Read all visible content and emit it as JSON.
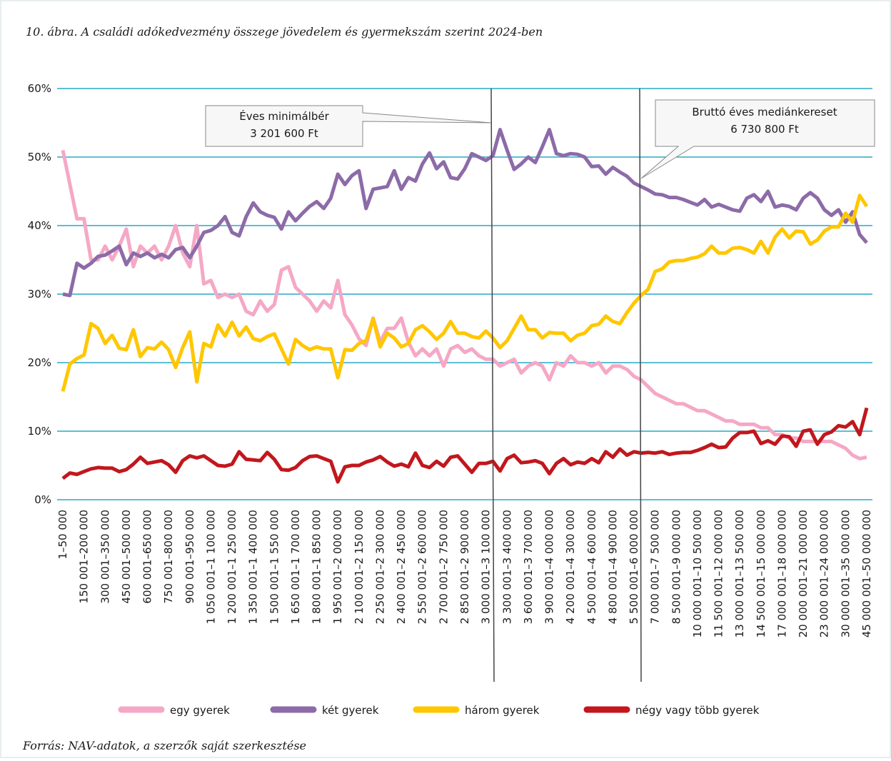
{
  "chart_data": {
    "type": "line",
    "title": "10. ábra. A családi adókedvezmény összege jövedelem és gyermekszám szerint 2024-ben",
    "source": "Forrás: NAV-adatok, a szerzők saját szerkesztése",
    "annotations": [
      [
        "Éves minimálbér",
        "3 201 600 Ft"
      ],
      [
        "Bruttó éves mediánkereset",
        "6 730 800 Ft"
      ]
    ],
    "categories": [
      "1–50 000",
      null,
      null,
      "150 001–200 000",
      null,
      null,
      "300 001–350 000",
      null,
      null,
      "450 001–500 000",
      null,
      null,
      "600 001–650 000",
      null,
      null,
      "750 001–800 000",
      null,
      null,
      "900 001–950 000",
      null,
      null,
      "1 050 001–1 100 000",
      null,
      null,
      "1 200 001–1 250 000",
      null,
      null,
      "1 350 001–1 400 000",
      null,
      null,
      "1 500 001–1 550 000",
      null,
      null,
      "1 650 001–1 700 000",
      null,
      null,
      "1 800 001–1 850 000",
      null,
      null,
      "1 950 001–2 000 000",
      null,
      null,
      "2 100 001–2 150 000",
      null,
      null,
      "2 250 001–2 300 000",
      null,
      null,
      "2 400 001–2 450 000",
      null,
      null,
      "2 550 001–2 600 000",
      null,
      null,
      "2 700 001–2 750 000",
      null,
      null,
      "2 850 001–2 900 000",
      null,
      null,
      "3 000 001–3 100 000",
      null,
      null,
      "3 300 001–3 400 000",
      null,
      null,
      "3 600 001–3 700 000",
      null,
      null,
      "3 900 001–4 000 000",
      null,
      null,
      "4 200 001–4 300 000",
      null,
      null,
      "4 500 001–4 600 000",
      null,
      null,
      "4 800 001–4 900 000",
      null,
      null,
      "5 500 001–6 000 000",
      null,
      null,
      "7 000 001–7 500 000",
      null,
      null,
      "8 500 001–9 000 000",
      null,
      null,
      "10 000 001–10 500 000",
      null,
      null,
      "11 500 001–12 000 000",
      null,
      null,
      "13 000 001–13 500 000",
      null,
      null,
      "14 500 001–15 000 000",
      null,
      null,
      "17 000 001–18 000 000",
      null,
      null,
      "20 000 001–21 000 000",
      null,
      null,
      "23 000 001–24 000 000",
      null,
      null,
      "30 000 001–35 000 000",
      null,
      null,
      "45 000 001–50 000 000"
    ],
    "series": [
      {
        "name": "egy gyerek",
        "color": "#f5a8c5",
        "values": [
          51,
          46,
          41,
          41,
          35,
          35,
          37,
          35,
          37,
          39.5,
          34,
          37,
          36,
          37,
          35,
          37,
          40,
          36,
          34,
          40,
          31.5,
          32,
          29.5,
          30,
          29.5,
          30,
          27.5,
          27,
          29,
          27.5,
          28.5,
          33.5,
          34,
          31,
          30,
          29,
          27.5,
          29,
          28,
          32,
          27,
          25.5,
          23.5,
          22.5,
          26.5,
          23,
          25,
          25,
          26.5,
          23,
          21,
          22,
          21,
          22,
          19.5,
          22,
          22.5,
          21.5,
          22,
          21,
          20.5,
          20.5,
          19.5,
          20,
          20.5,
          18.5,
          19.5,
          20,
          19.5,
          17.5,
          20,
          19.5,
          21,
          20,
          20,
          19.5,
          20,
          18.5,
          19.5,
          19.5,
          19,
          18,
          17.5,
          16.5,
          15.5,
          15,
          14.5,
          14,
          14,
          13.5,
          13,
          13,
          12.5,
          12,
          11.5,
          11.5,
          11,
          11,
          11,
          10.5,
          10.5,
          9.5,
          9.5,
          9,
          9,
          8.5,
          8.5,
          8.5,
          8.5,
          8.5,
          8,
          7.5,
          6.5,
          6,
          6.2
        ]
      },
      {
        "name": "két gyerek",
        "color": "#8c6ba8",
        "values": [
          30,
          29.8,
          34.5,
          33.8,
          34.5,
          35.5,
          35.7,
          36.3,
          37,
          34.3,
          36,
          35.5,
          36,
          35.3,
          35.8,
          35.3,
          36.5,
          36.8,
          35.3,
          37,
          39,
          39.3,
          40,
          41.3,
          39,
          38.5,
          41.3,
          43.3,
          42,
          41.5,
          41.2,
          39.5,
          42,
          40.7,
          41.8,
          42.8,
          43.5,
          42.5,
          44,
          47.5,
          46,
          47.3,
          48,
          42.5,
          45.3,
          45.5,
          45.7,
          48,
          45.3,
          47,
          46.5,
          49,
          50.6,
          48.3,
          49.3,
          47,
          46.8,
          48.3,
          50.5,
          50,
          49.5,
          50.2,
          54,
          51,
          48.2,
          49,
          50,
          49.2,
          51.5,
          54,
          50.5,
          50.2,
          50.5,
          50.4,
          50,
          48.6,
          48.7,
          47.5,
          48.5,
          47.8,
          47.2,
          46.2,
          45.7,
          45.2,
          44.6,
          44.5,
          44.1,
          44.1,
          43.8,
          43.4,
          43,
          43.8,
          42.7,
          43.1,
          42.7,
          42.3,
          42.1,
          44,
          44.5,
          43.5,
          45,
          42.7,
          43,
          42.8,
          42.3,
          44,
          44.8,
          44,
          42.3,
          41.5,
          42.3,
          40.5,
          42,
          38.7,
          37.5
        ]
      },
      {
        "name": "három gyerek",
        "color": "#ffc700",
        "values": [
          15.8,
          19.8,
          20.6,
          21.1,
          25.7,
          25,
          22.8,
          24,
          22.1,
          21.9,
          24.8,
          20.9,
          22.2,
          22,
          23,
          21.9,
          19.3,
          22.2,
          24.5,
          17.2,
          22.8,
          22.3,
          25.5,
          23.9,
          25.9,
          23.9,
          25.2,
          23.5,
          23.2,
          23.8,
          24.2,
          22,
          19.8,
          23.4,
          22.5,
          21.9,
          22.3,
          22,
          22,
          17.8,
          21.9,
          21.8,
          22.8,
          23.2,
          26.4,
          22.3,
          24.3,
          23.6,
          22.3,
          22.8,
          24.8,
          25.4,
          24.5,
          23.4,
          24.3,
          26,
          24.3,
          24.3,
          23.8,
          23.6,
          24.6,
          23.6,
          22.2,
          23.2,
          25,
          26.8,
          24.8,
          24.8,
          23.6,
          24.4,
          24.3,
          24.3,
          23.2,
          24,
          24.3,
          25.4,
          25.6,
          26.8,
          26,
          25.7,
          27.3,
          28.7,
          29.8,
          30.7,
          33.3,
          33.7,
          34.7,
          34.9,
          34.9,
          35.2,
          35.4,
          35.9,
          37,
          36,
          36,
          36.7,
          36.8,
          36.5,
          36,
          37.7,
          36,
          38.3,
          39.5,
          38.2,
          39.2,
          39.1,
          37.3,
          37.9,
          39.2,
          39.8,
          39.8,
          41.8,
          40.5,
          44.4,
          42.8
        ]
      },
      {
        "name": "négy vagy több gyerek",
        "color": "#c1171d",
        "values": [
          3.1,
          3.9,
          3.7,
          4.1,
          4.5,
          4.7,
          4.6,
          4.6,
          4.1,
          4.4,
          5.2,
          6.2,
          5.3,
          5.5,
          5.7,
          5.1,
          4,
          5.7,
          6.4,
          6.1,
          6.4,
          5.7,
          5,
          4.9,
          5.2,
          7,
          5.9,
          5.8,
          5.7,
          6.9,
          5.9,
          4.4,
          4.3,
          4.7,
          5.7,
          6.3,
          6.4,
          6,
          5.6,
          2.6,
          4.8,
          5,
          5,
          5.5,
          5.8,
          6.3,
          5.5,
          4.9,
          5.2,
          4.8,
          6.8,
          5,
          4.7,
          5.6,
          4.9,
          6.2,
          6.4,
          5.2,
          4,
          5.3,
          5.3,
          5.6,
          4.2,
          6,
          6.5,
          5.4,
          5.5,
          5.7,
          5.3,
          3.8,
          5.3,
          6,
          5.1,
          5.5,
          5.3,
          6,
          5.4,
          7,
          6.2,
          7.4,
          6.5,
          7,
          6.8,
          6.9,
          6.8,
          7,
          6.6,
          6.8,
          6.9,
          6.9,
          7.2,
          7.6,
          8.1,
          7.6,
          7.7,
          9,
          9.8,
          9.8,
          10,
          8.2,
          8.6,
          8.1,
          9.3,
          9.2,
          7.8,
          10,
          10.2,
          8.1,
          9.5,
          9.9,
          10.8,
          10.6,
          11.4,
          9.5,
          13.4
        ]
      }
    ],
    "ylim": [
      0,
      60
    ],
    "yticks": [
      {
        "value": 0,
        "label": "0%"
      },
      {
        "value": 10,
        "label": "10%"
      },
      {
        "value": 20,
        "label": "20%"
      },
      {
        "value": 30,
        "label": "30%"
      },
      {
        "value": 40,
        "label": "40%"
      },
      {
        "value": 50,
        "label": "50%"
      },
      {
        "value": 60,
        "label": "60%"
      }
    ],
    "grid": true,
    "legend": "bottom"
  }
}
